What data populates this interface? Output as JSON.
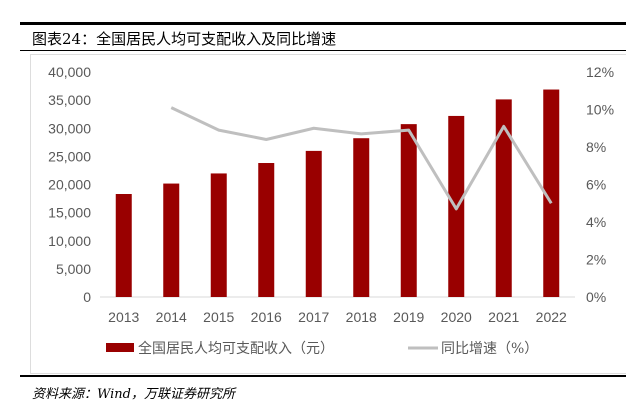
{
  "title": "图表24：全国居民人均可支配收入及同比增速",
  "source": "资料来源：Wind，万联证券研究所",
  "chart_data": {
    "type": "bar+line",
    "categories": [
      "2013",
      "2014",
      "2015",
      "2016",
      "2017",
      "2018",
      "2019",
      "2020",
      "2021",
      "2022"
    ],
    "series": [
      {
        "name": "全国居民人均可支配收入（元）",
        "type": "bar",
        "axis": "left",
        "color": "#990000",
        "values": [
          18311,
          20167,
          21966,
          23821,
          25974,
          28228,
          30733,
          32189,
          35128,
          36883
        ]
      },
      {
        "name": "同比增速（%）",
        "type": "line",
        "axis": "right",
        "color": "#bfbfbf",
        "values": [
          null,
          10.1,
          8.9,
          8.4,
          9.0,
          8.7,
          8.9,
          4.7,
          9.1,
          5.0
        ]
      }
    ],
    "yleft": {
      "lim": [
        0,
        40000
      ],
      "ticks": [
        "0",
        "5,000",
        "10,000",
        "15,000",
        "20,000",
        "25,000",
        "30,000",
        "35,000",
        "40,000"
      ]
    },
    "yright": {
      "lim": [
        0,
        12
      ],
      "ticks": [
        "0%",
        "2%",
        "4%",
        "6%",
        "8%",
        "10%",
        "12%"
      ]
    },
    "grid": false,
    "legend": "bottom"
  }
}
